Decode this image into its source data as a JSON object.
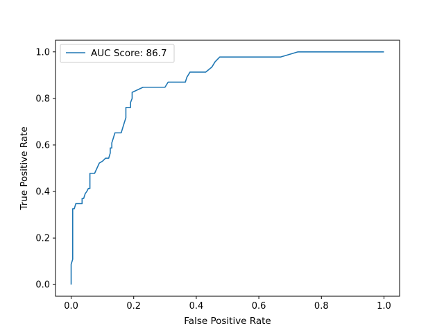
{
  "chart_data": {
    "type": "line",
    "xlabel": "False Positive Rate",
    "ylabel": "True Positive Rate",
    "xlim": [
      -0.05,
      1.05
    ],
    "ylim": [
      -0.05,
      1.05
    ],
    "xticks": [
      0.0,
      0.2,
      0.4,
      0.6,
      0.8,
      1.0
    ],
    "yticks": [
      0.0,
      0.2,
      0.4,
      0.6,
      0.8,
      1.0
    ],
    "xtick_labels": [
      "0.0",
      "0.2",
      "0.4",
      "0.6",
      "0.8",
      "1.0"
    ],
    "ytick_labels": [
      "0.0",
      "0.2",
      "0.4",
      "0.6",
      "0.8",
      "1.0"
    ],
    "grid": false,
    "legend_position": "top-left",
    "series": [
      {
        "name": "AUC Score: 86.7",
        "color": "#1f77b4",
        "x": [
          0.0,
          0.0,
          0.005,
          0.005,
          0.01,
          0.015,
          0.02,
          0.035,
          0.035,
          0.04,
          0.045,
          0.05,
          0.055,
          0.06,
          0.06,
          0.075,
          0.09,
          0.1,
          0.11,
          0.12,
          0.125,
          0.125,
          0.13,
          0.13,
          0.135,
          0.14,
          0.16,
          0.17,
          0.175,
          0.175,
          0.19,
          0.19,
          0.195,
          0.195,
          0.23,
          0.26,
          0.3,
          0.31,
          0.33,
          0.365,
          0.37,
          0.38,
          0.43,
          0.45,
          0.46,
          0.475,
          0.52,
          0.6,
          0.67,
          0.7,
          0.725,
          1.0
        ],
        "y": [
          0.0,
          0.087,
          0.109,
          0.326,
          0.326,
          0.348,
          0.348,
          0.348,
          0.37,
          0.37,
          0.391,
          0.4,
          0.413,
          0.413,
          0.478,
          0.478,
          0.522,
          0.53,
          0.543,
          0.543,
          0.565,
          0.587,
          0.587,
          0.609,
          0.63,
          0.652,
          0.652,
          0.696,
          0.717,
          0.761,
          0.761,
          0.783,
          0.8,
          0.826,
          0.848,
          0.848,
          0.848,
          0.87,
          0.87,
          0.87,
          0.891,
          0.913,
          0.913,
          0.935,
          0.957,
          0.978,
          0.978,
          0.978,
          0.978,
          0.99,
          1.0,
          1.0
        ]
      }
    ]
  }
}
